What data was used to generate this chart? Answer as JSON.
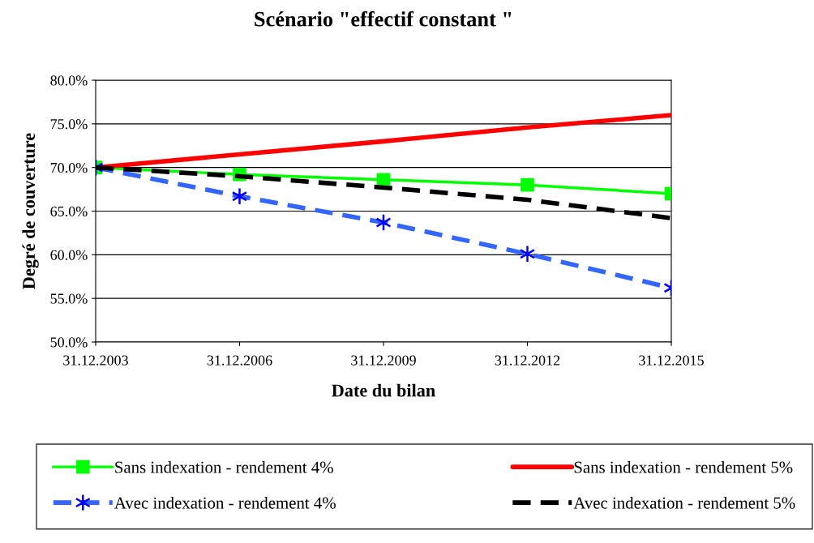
{
  "chart_data": {
    "type": "line",
    "title": "Scénario \"effectif constant \"",
    "xlabel": "Date du bilan",
    "ylabel": "Degré de couverture",
    "categories": [
      "31.12.2003",
      "31.12.2006",
      "31.12.2009",
      "31.12.2012",
      "31.12.2015"
    ],
    "series": [
      {
        "name": "Sans indexation - rendement 4%",
        "color": "#00ff00",
        "values": [
          70.0,
          69.2,
          68.6,
          68.0,
          67.0
        ],
        "marker": "square",
        "line_style": "solid"
      },
      {
        "name": "Sans indexation - rendement 5%",
        "color": "#ff0000",
        "values": [
          70.0,
          71.5,
          73.0,
          74.6,
          76.0
        ],
        "marker": "none",
        "line_style": "solid"
      },
      {
        "name": "Avec indexation - rendement 4%",
        "color": "#3366ff",
        "values": [
          70.0,
          66.7,
          63.7,
          60.1,
          56.2
        ],
        "marker": "cross",
        "line_style": "dashed"
      },
      {
        "name": "Avec indexation - rendement 5%",
        "color": "#000000",
        "values": [
          70.0,
          69.0,
          67.7,
          66.3,
          64.2
        ],
        "marker": "none",
        "line_style": "dashed"
      }
    ],
    "ylim": [
      50,
      80
    ],
    "yticks": [
      {
        "value": 50,
        "label": "50.0%"
      },
      {
        "value": 55,
        "label": "55.0%"
      },
      {
        "value": 60,
        "label": "60.0%"
      },
      {
        "value": 65,
        "label": "65.0%"
      },
      {
        "value": 70,
        "label": "70.0%"
      },
      {
        "value": 75,
        "label": "75.0%"
      },
      {
        "value": 80,
        "label": "80.0%"
      }
    ],
    "grid": "y",
    "legend": "bottom"
  }
}
